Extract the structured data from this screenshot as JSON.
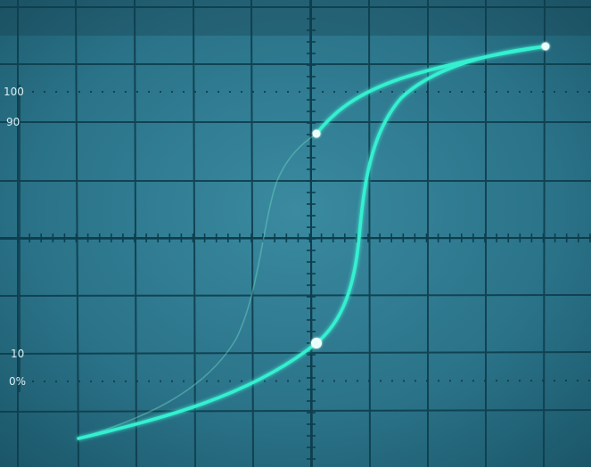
{
  "screen": {
    "labels": {
      "l100": "100",
      "l90": "90",
      "l10": "10",
      "l0": "0%"
    },
    "colors": {
      "screen": "#2a7288",
      "grid": "#0e3e4d",
      "trace": "#34f0d0",
      "dim_trace": "#6fd6c4",
      "label": "#d9eef3"
    }
  }
}
